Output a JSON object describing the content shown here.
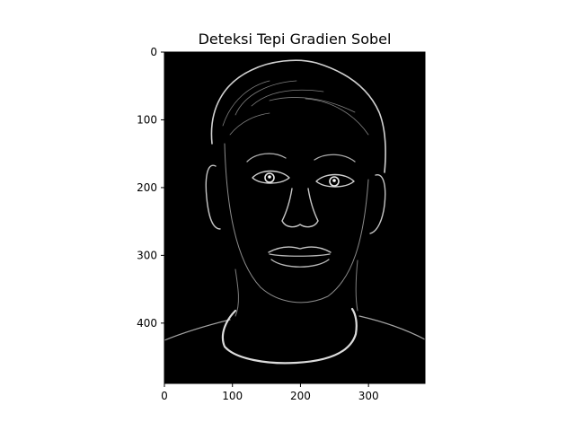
{
  "chart_data": {
    "type": "image",
    "title": "Deteksi Tepi Gradien Sobel",
    "xlabel": "",
    "ylabel": "",
    "xlim": [
      0,
      383
    ],
    "ylim": [
      489,
      0
    ],
    "x_ticks": [
      {
        "value": 0,
        "label": "0"
      },
      {
        "value": 100,
        "label": "100"
      },
      {
        "value": 200,
        "label": "200"
      },
      {
        "value": 300,
        "label": "300"
      }
    ],
    "y_ticks": [
      {
        "value": 0,
        "label": "0"
      },
      {
        "value": 100,
        "label": "100"
      },
      {
        "value": 200,
        "label": "200"
      },
      {
        "value": 300,
        "label": "300"
      },
      {
        "value": 400,
        "label": "400"
      }
    ],
    "colormap": "gray",
    "background_color": "#000000",
    "edge_color": "#e8e8e8",
    "grid": false,
    "legend": "none"
  }
}
